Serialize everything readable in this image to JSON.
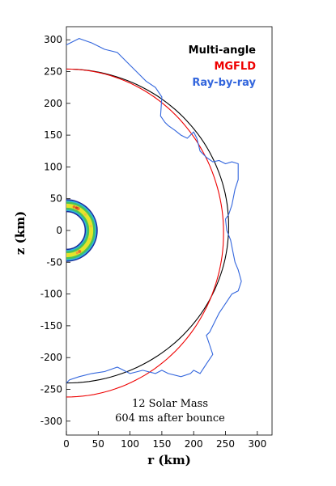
{
  "chart_data": {
    "type": "line",
    "xlabel": "r (km)",
    "ylabel": "z (km)",
    "xlim": [
      0,
      335
    ],
    "ylim": [
      -335,
      305
    ],
    "x_ticks": [
      "0",
      "50",
      "100",
      "150",
      "200",
      "250",
      "300"
    ],
    "y_ticks": [
      "-300",
      "-250",
      "-200",
      "-150",
      "-100",
      "-50",
      "0",
      "50",
      "100",
      "150",
      "200",
      "250",
      "300"
    ],
    "legend": [
      {
        "label": "Multi-angle",
        "color": "#000000"
      },
      {
        "label": "MGFLD",
        "color": "#ee0000"
      },
      {
        "label": "Ray-by-ray",
        "color": "#3366dd"
      }
    ],
    "annotations": [
      "12 Solar Mass",
      "604 ms after bounce"
    ],
    "series": [
      {
        "name": "Multi-angle",
        "color": "#000000",
        "shape": "semi-ellipse",
        "center_z": 7,
        "rx": 255,
        "rz": 247
      },
      {
        "name": "MGFLD",
        "color": "#ee0000",
        "shape": "semi-ellipse",
        "center_z": -4,
        "rx": 247,
        "rz": 258
      },
      {
        "name": "Ray-by-ray",
        "color": "#3366dd",
        "r": [
          0,
          20,
          40,
          60,
          80,
          100,
          115,
          125,
          140,
          150,
          148,
          155,
          160,
          170,
          180,
          190,
          200,
          205,
          210,
          220,
          230,
          240,
          250,
          260,
          270,
          270,
          265,
          260,
          255,
          250,
          252,
          258,
          262,
          265,
          270,
          275,
          270,
          260,
          250,
          240,
          235,
          230,
          225,
          220,
          225,
          230,
          220,
          210,
          200,
          195,
          180,
          160,
          150,
          140,
          120,
          100,
          80,
          60,
          40,
          20,
          5,
          0
        ],
        "z": [
          292,
          302,
          295,
          285,
          280,
          260,
          245,
          235,
          225,
          210,
          180,
          170,
          165,
          158,
          150,
          145,
          155,
          145,
          125,
          115,
          108,
          110,
          105,
          108,
          105,
          80,
          65,
          40,
          25,
          18,
          0,
          -15,
          -35,
          -50,
          -62,
          -80,
          -95,
          -100,
          -115,
          -130,
          -140,
          -150,
          -160,
          -165,
          -180,
          -195,
          -210,
          -225,
          -220,
          -225,
          -230,
          -225,
          -220,
          -225,
          -220,
          -225,
          -215,
          -222,
          -225,
          -230,
          -235,
          -240
        ]
      }
    ],
    "inset_ring": {
      "inner_radius": 30,
      "outer_radius": 48
    }
  }
}
